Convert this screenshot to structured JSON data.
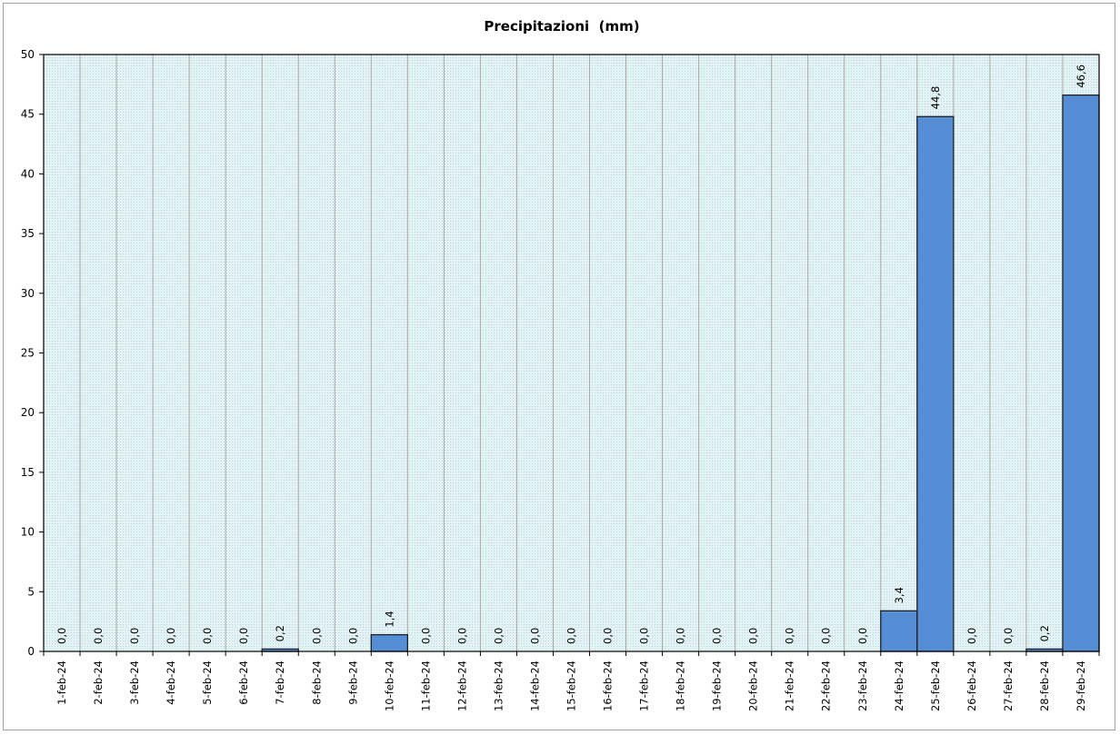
{
  "chart_data": {
    "type": "bar",
    "title": "Precipitazioni  (mm)",
    "categories": [
      "1-feb-24",
      "2-feb-24",
      "3-feb-24",
      "4-feb-24",
      "5-feb-24",
      "6-feb-24",
      "7-feb-24",
      "8-feb-24",
      "9-feb-24",
      "10-feb-24",
      "11-feb-24",
      "12-feb-24",
      "13-feb-24",
      "14-feb-24",
      "15-feb-24",
      "16-feb-24",
      "17-feb-24",
      "18-feb-24",
      "19-feb-24",
      "20-feb-24",
      "21-feb-24",
      "22-feb-24",
      "23-feb-24",
      "24-feb-24",
      "25-feb-24",
      "26-feb-24",
      "27-feb-24",
      "28-feb-24",
      "29-feb-24"
    ],
    "values": [
      0,
      0,
      0,
      0,
      0,
      0,
      0.2,
      0,
      0,
      1.4,
      0,
      0,
      0,
      0,
      0,
      0,
      0,
      0,
      0,
      0,
      0,
      0,
      0,
      3.4,
      44.8,
      0,
      0,
      0.2,
      46.6
    ],
    "value_labels": [
      "0,0",
      "0,0",
      "0,0",
      "0,0",
      "0,0",
      "0,0",
      "0,2",
      "0,0",
      "0,0",
      "1,4",
      "0,0",
      "0,0",
      "0,0",
      "0,0",
      "0,0",
      "0,0",
      "0,0",
      "0,0",
      "0,0",
      "0,0",
      "0,0",
      "0,0",
      "0,0",
      "3,4",
      "44,8",
      "0,0",
      "0,0",
      "0,2",
      "46,6"
    ],
    "ylim": [
      0,
      50
    ],
    "yticks": [
      0,
      5,
      10,
      15,
      20,
      25,
      30,
      35,
      40,
      45,
      50
    ],
    "grid": "vertical",
    "legend": "none",
    "bar_color": "#558ed5",
    "plot_background": "#dff0f3",
    "xlabel": "",
    "ylabel": ""
  }
}
